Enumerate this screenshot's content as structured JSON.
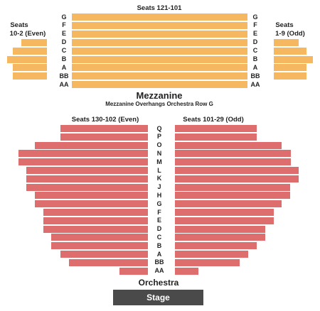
{
  "mezzanine": {
    "center_label": "Seats 121-101",
    "left_label_line1": "Seats",
    "left_label_line2": "10-2 (Even)",
    "right_label_line1": "Seats",
    "right_label_line2": "1-9 (Odd)",
    "title": "Mezzanine",
    "note": "Mezzanine Overhangs Orchestra Row G",
    "rows": [
      "G",
      "F",
      "E",
      "D",
      "C",
      "B",
      "A",
      "BB",
      "AA"
    ]
  },
  "orchestra": {
    "left_label": "Seats 130-102 (Even)",
    "right_label": "Seats 101-29 (Odd)",
    "title": "Orchestra",
    "rows": [
      "Q",
      "P",
      "O",
      "N",
      "M",
      "L",
      "K",
      "J",
      "H",
      "G",
      "F",
      "E",
      "D",
      "C",
      "B",
      "A",
      "BB",
      "AA"
    ]
  },
  "stage": {
    "label": "Stage"
  },
  "colors": {
    "mezzanine": "#f5b75f",
    "orchestra": "#de6e6e",
    "stage": "#4a4a4a"
  }
}
